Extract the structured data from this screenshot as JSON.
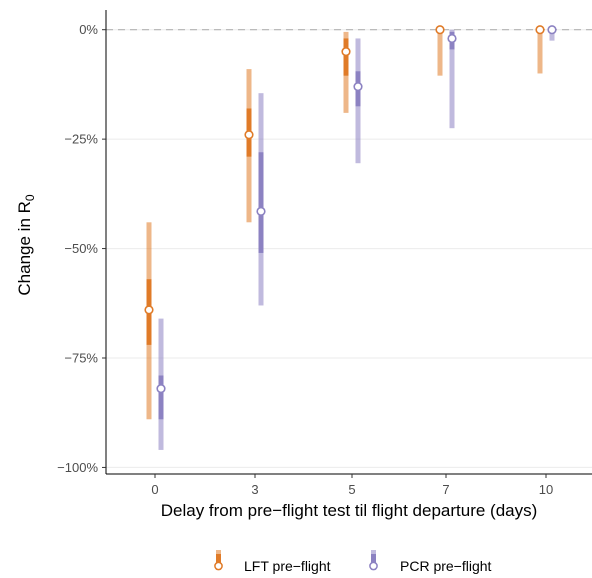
{
  "chart_data": {
    "type": "interval",
    "xlabel": "Delay from pre−flight test til flight departure (days)",
    "ylabel_main": "Change in R",
    "ylabel_sub": "0",
    "categories": [
      "0",
      "3",
      "5",
      "7",
      "10"
    ],
    "y_ticks": [
      {
        "value": 0,
        "label": "0%"
      },
      {
        "value": -25,
        "label": "−25%"
      },
      {
        "value": -50,
        "label": "−50%"
      },
      {
        "value": -75,
        "label": "−75%"
      },
      {
        "value": -100,
        "label": "−100%"
      }
    ],
    "ylim": [
      -101.5,
      4.5
    ],
    "grid": true,
    "reference_line": 0,
    "legend_position": "bottom",
    "colors": {
      "LFT": "#E07B28",
      "PCR": "#8C82C2"
    },
    "series": [
      {
        "name": "LFT pre−flight",
        "color": "#E07B28",
        "points": [
          {
            "category": "0",
            "median": -64,
            "inner": [
              -72,
              -57
            ],
            "outer": [
              -89,
              -44
            ]
          },
          {
            "category": "3",
            "median": -24,
            "inner": [
              -29,
              -18
            ],
            "outer": [
              -44,
              -9
            ]
          },
          {
            "category": "5",
            "median": -5,
            "inner": [
              -10.5,
              -2
            ],
            "outer": [
              -19,
              -0.5
            ]
          },
          {
            "category": "7",
            "median": 0,
            "inner": [
              0,
              0
            ],
            "outer": [
              -10.5,
              0
            ]
          },
          {
            "category": "10",
            "median": 0,
            "inner": [
              0,
              0
            ],
            "outer": [
              -10,
              0
            ]
          }
        ]
      },
      {
        "name": "PCR pre−flight",
        "color": "#8C82C2",
        "points": [
          {
            "category": "0",
            "median": -82,
            "inner": [
              -89,
              -79
            ],
            "outer": [
              -96,
              -66
            ]
          },
          {
            "category": "3",
            "median": -41.5,
            "inner": [
              -51,
              -28
            ],
            "outer": [
              -63,
              -14.5
            ]
          },
          {
            "category": "5",
            "median": -13,
            "inner": [
              -17.5,
              -9.5
            ],
            "outer": [
              -30.5,
              -2
            ]
          },
          {
            "category": "7",
            "median": -2,
            "inner": [
              -4.5,
              -0.5
            ],
            "outer": [
              -22.5,
              0
            ]
          },
          {
            "category": "10",
            "median": 0,
            "inner": [
              -0.5,
              0
            ],
            "outer": [
              -2.5,
              0
            ]
          }
        ]
      }
    ]
  }
}
